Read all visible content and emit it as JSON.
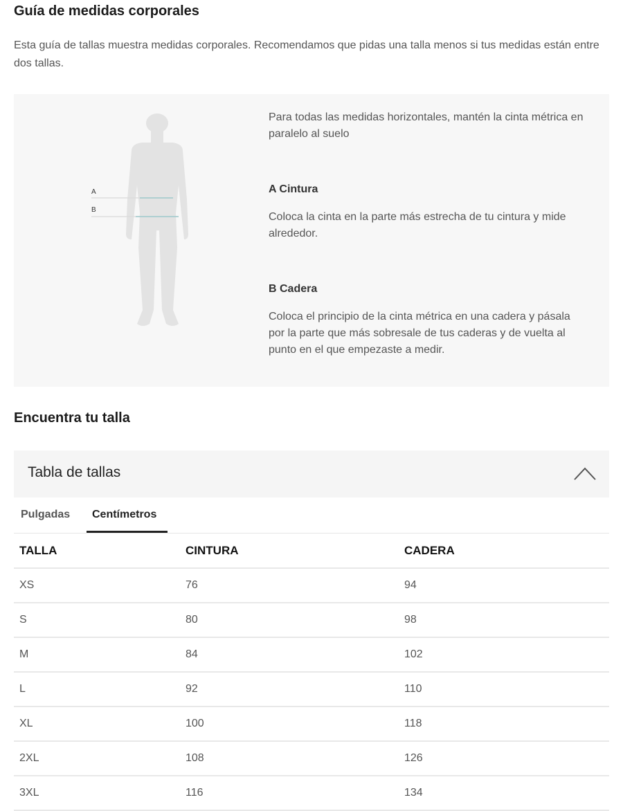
{
  "title": "Guía de medidas corporales",
  "intro": "Esta guía de tallas muestra medidas corporales. Recomendamos que pidas una talla menos si tus medidas están entre dos tallas.",
  "figure": {
    "label_a": "A",
    "label_b": "B",
    "line_color": "#9ec9cc"
  },
  "instructions": {
    "general": "Para todas las medidas horizontales, mantén la cinta métrica en paralelo al suelo",
    "a_title": "A Cintura",
    "a_text": "Coloca la cinta en la parte más estrecha de tu cintura y mide alrededor.",
    "b_title": "B Cadera",
    "b_text": "Coloca el principio de la cinta métrica en una cadera y pásala por la parte que más sobresale de tus caderas y de vuelta al punto en el que empezaste a medir."
  },
  "find_title": "Encuentra tu talla",
  "accordion": {
    "title": "Tabla de tallas",
    "icon": "chevron-up-icon",
    "expanded": true
  },
  "tabs": [
    {
      "label": "Pulgadas",
      "active": false
    },
    {
      "label": "Centímetros",
      "active": true
    }
  ],
  "table": {
    "headers": [
      "TALLA",
      "CINTURA",
      "CADERA"
    ],
    "rows": [
      [
        "XS",
        "76",
        "94"
      ],
      [
        "S",
        "80",
        "98"
      ],
      [
        "M",
        "84",
        "102"
      ],
      [
        "L",
        "92",
        "110"
      ],
      [
        "XL",
        "100",
        "118"
      ],
      [
        "2XL",
        "108",
        "126"
      ],
      [
        "3XL",
        "116",
        "134"
      ]
    ]
  }
}
